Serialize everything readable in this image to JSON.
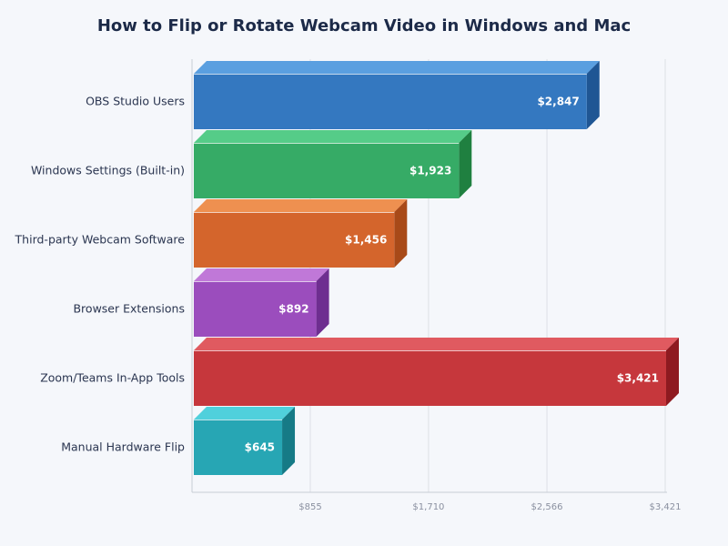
{
  "chart_data": {
    "type": "bar",
    "orientation": "horizontal",
    "style": "3d",
    "title": "How to Flip or Rotate Webcam Video in Windows and Mac",
    "xlabel": "",
    "ylabel": "",
    "categories": [
      "OBS Studio Users",
      "Windows Settings (Built-in)",
      "Third-party Webcam Software",
      "Browser Extensions",
      "Zoom/Teams In-App Tools",
      "Manual Hardware Flip"
    ],
    "values": [
      2847,
      1923,
      1456,
      892,
      3421,
      645
    ],
    "value_labels": [
      "$2,847",
      "$1,923",
      "$1,456",
      "$892",
      "$3,421",
      "$645"
    ],
    "xlim": [
      0,
      3421
    ],
    "x_ticks": [
      855,
      1710,
      2566,
      3421
    ],
    "x_tick_labels": [
      "$855",
      "$1,710",
      "$2,566",
      "$3,421"
    ],
    "grid": true,
    "legend": "none",
    "colors": [
      {
        "front": "#3478c0",
        "top": "#5a9fe0",
        "side": "#1f5694"
      },
      {
        "front": "#36ab66",
        "top": "#55cc88",
        "side": "#1f8040"
      },
      {
        "front": "#d4652c",
        "top": "#ee9050",
        "side": "#a84a18"
      },
      {
        "front": "#9b4dbd",
        "top": "#c078d8",
        "side": "#6e2e90"
      },
      {
        "front": "#c6373c",
        "top": "#e05a60",
        "side": "#8e1a20"
      },
      {
        "front": "#27a6b4",
        "top": "#50d0dc",
        "side": "#167a86"
      }
    ]
  }
}
